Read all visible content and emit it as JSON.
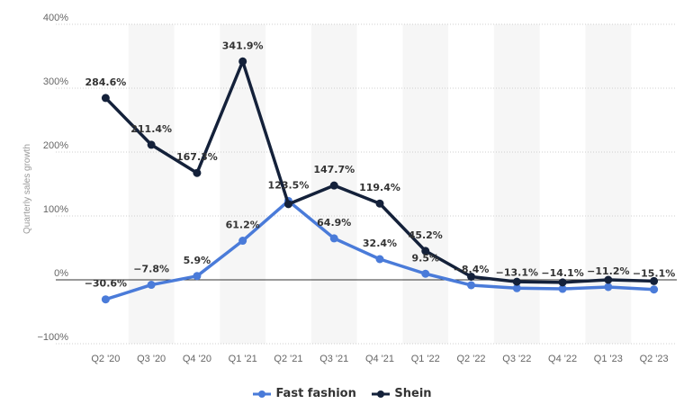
{
  "chart_data": {
    "type": "line",
    "categories": [
      "Q2 '20",
      "Q3 '20",
      "Q4 '20",
      "Q1 '21",
      "Q2 '21",
      "Q3 '21",
      "Q4 '21",
      "Q1 '22",
      "Q2 '22",
      "Q3 '22",
      "Q4 '22",
      "Q1 '23",
      "Q2 '23"
    ],
    "series": [
      {
        "name": "Fast fashion",
        "color": "#4a7bd9",
        "values": [
          -30.6,
          -7.8,
          5.9,
          61.2,
          123.5,
          64.9,
          32.4,
          9.5,
          -8.4,
          -13.1,
          -14.1,
          -11.2,
          -15.1
        ],
        "labels": [
          "-30.6%",
          "-7.8%",
          "5.9%",
          "61.2%",
          "123.5%",
          "64.9%",
          "32.4%",
          "9.5%",
          "-8.4%",
          "-13.1%",
          "-14.1%",
          "-11.2%",
          "-15.1%"
        ],
        "label_at": [
          0,
          1,
          2,
          3,
          4,
          5,
          6,
          7,
          8,
          9,
          10,
          11,
          12
        ]
      },
      {
        "name": "Shein",
        "color": "#14213a",
        "values": [
          284.6,
          211.4,
          167.3,
          341.9,
          118.5,
          147.7,
          119.4,
          45.2,
          5.0,
          -3.0,
          -4.0,
          0.0,
          -2.0
        ],
        "labels": [
          "284.6%",
          "211.4%",
          "167.3%",
          "341.9%",
          "",
          "147.7%",
          "119.4%",
          "45.2%",
          "",
          "",
          "",
          "",
          ""
        ],
        "label_at": [
          0,
          1,
          2,
          3,
          5,
          6,
          7
        ]
      }
    ],
    "ylabel": "Quarterly sales growth",
    "ylim": [
      -100,
      400
    ],
    "yticks": [
      -100,
      0,
      100,
      200,
      300,
      400
    ],
    "ytick_labels": [
      "−100%",
      "0%",
      "100%",
      "200%",
      "300%",
      "400%"
    ],
    "grid": true,
    "legend_position": "bottom-center"
  }
}
